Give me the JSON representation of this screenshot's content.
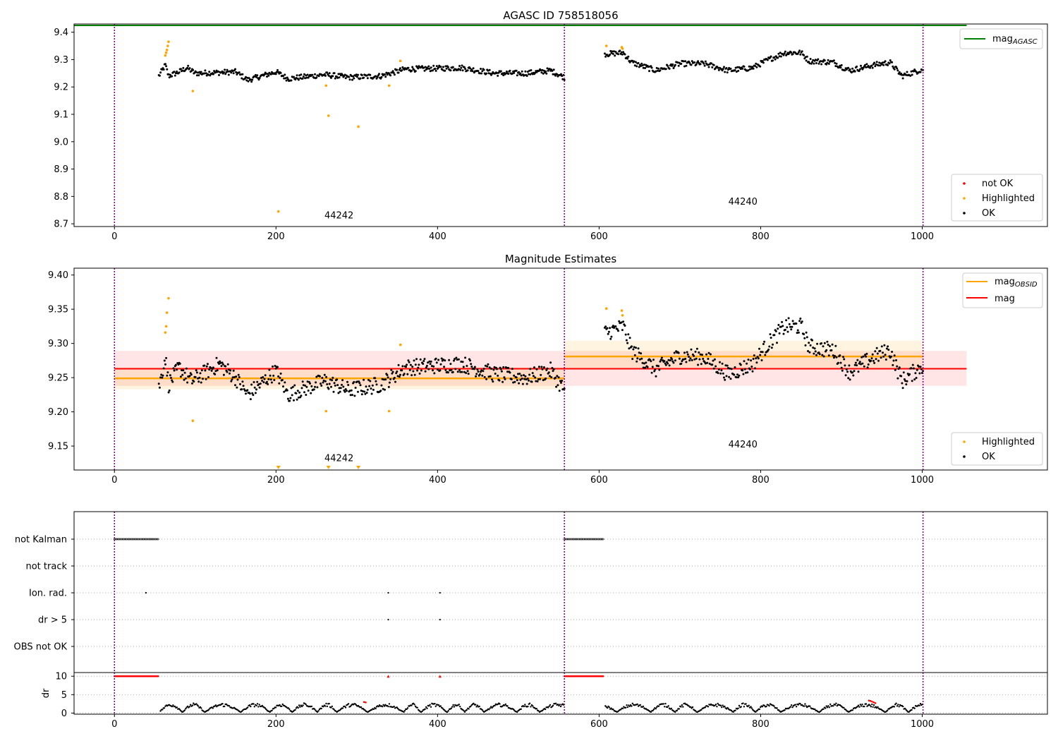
{
  "colors": {
    "ok": "#000000",
    "highlighted": "#ffa500",
    "not_ok": "#ff0000",
    "agasc": "#008000",
    "obs_mag": "#ffa500",
    "global_mag": "#ff0000",
    "boundary": "#800080"
  },
  "chart_data": [
    {
      "type": "scatter",
      "title": "AGASC ID 758518056",
      "xlim": [
        -50,
        1155
      ],
      "ylim": [
        8.69,
        9.43
      ],
      "xticks": [
        0,
        200,
        400,
        600,
        800,
        1000
      ],
      "yticks": [
        8.7,
        8.8,
        8.9,
        9.0,
        9.1,
        9.2,
        9.3,
        9.4
      ],
      "xtick_labels": [
        "0",
        "200",
        "400",
        "600",
        "800",
        "1000"
      ],
      "ytick_labels": [
        "8.7",
        "8.8",
        "8.9",
        "9.0",
        "9.1",
        "9.2",
        "9.3",
        "9.4"
      ],
      "grid": false,
      "boundaries": [
        0,
        557,
        1001
      ],
      "obsid_labels": [
        {
          "text": "44242",
          "x": 278,
          "y": 8.72
        },
        {
          "text": "44240",
          "x": 778,
          "y": 8.77
        }
      ],
      "agasc_mag": 9.425,
      "legend_lines": [
        {
          "label": "mag",
          "sub": "AGASC"
        }
      ],
      "legend_points": [
        "not OK",
        "Highlighted",
        "OK"
      ],
      "highlighted": [
        [
          63,
          9.315
        ],
        [
          64,
          9.325
        ],
        [
          65,
          9.335
        ],
        [
          66,
          9.35
        ],
        [
          67,
          9.365
        ],
        [
          97,
          9.185
        ],
        [
          203,
          8.745
        ],
        [
          262,
          9.205
        ],
        [
          265,
          9.095
        ],
        [
          302,
          9.055
        ],
        [
          340,
          9.205
        ],
        [
          354,
          9.295
        ],
        [
          609,
          9.35
        ],
        [
          628,
          9.345
        ],
        [
          629,
          9.34
        ]
      ],
      "ok_segments": [
        {
          "x0": 55,
          "x1": 557,
          "n": 500,
          "keys": [
            [
              55,
              9.24
            ],
            [
              63,
              9.28
            ],
            [
              67,
              9.24
            ],
            [
              80,
              9.255
            ],
            [
              90,
              9.27
            ],
            [
              100,
              9.25
            ],
            [
              150,
              9.255
            ],
            [
              165,
              9.225
            ],
            [
              200,
              9.255
            ],
            [
              215,
              9.23
            ],
            [
              260,
              9.245
            ],
            [
              290,
              9.235
            ],
            [
              330,
              9.24
            ],
            [
              360,
              9.265
            ],
            [
              430,
              9.27
            ],
            [
              470,
              9.25
            ],
            [
              510,
              9.25
            ],
            [
              540,
              9.26
            ],
            [
              557,
              9.235
            ]
          ],
          "noise": 0.01
        },
        {
          "x0": 607,
          "x1": 1001,
          "n": 380,
          "keys": [
            [
              607,
              9.32
            ],
            [
              630,
              9.325
            ],
            [
              640,
              9.29
            ],
            [
              670,
              9.26
            ],
            [
              700,
              9.285
            ],
            [
              730,
              9.285
            ],
            [
              760,
              9.26
            ],
            [
              790,
              9.27
            ],
            [
              810,
              9.3
            ],
            [
              830,
              9.325
            ],
            [
              850,
              9.325
            ],
            [
              860,
              9.295
            ],
            [
              890,
              9.29
            ],
            [
              910,
              9.26
            ],
            [
              940,
              9.28
            ],
            [
              960,
              9.29
            ],
            [
              975,
              9.24
            ],
            [
              1001,
              9.265
            ]
          ],
          "noise": 0.01
        }
      ]
    },
    {
      "type": "scatter",
      "title": "Magnitude Estimates",
      "xlim": [
        -50,
        1155
      ],
      "ylim": [
        9.115,
        9.41
      ],
      "xticks": [
        0,
        200,
        400,
        600,
        800,
        1000
      ],
      "yticks": [
        9.15,
        9.2,
        9.25,
        9.3,
        9.35,
        9.4
      ],
      "xtick_labels": [
        "0",
        "200",
        "400",
        "600",
        "800",
        "1000"
      ],
      "ytick_labels": [
        "9.15",
        "9.20",
        "9.25",
        "9.30",
        "9.35",
        "9.40"
      ],
      "grid": false,
      "boundaries": [
        0,
        557,
        1001
      ],
      "obsid_labels": [
        {
          "text": "44242",
          "x": 278,
          "y": 9.128
        },
        {
          "text": "44240",
          "x": 778,
          "y": 9.148
        }
      ],
      "global_mag": {
        "value": 9.263,
        "band": [
          9.238,
          9.289
        ],
        "x": [
          0,
          1055
        ]
      },
      "obs_mags": [
        {
          "x": [
            0,
            557
          ],
          "value": 9.249,
          "band": [
            9.233,
            9.265
          ]
        },
        {
          "x": [
            557,
            1001
          ],
          "value": 9.281,
          "band": [
            9.262,
            9.304
          ]
        }
      ],
      "legend_lines": [
        {
          "label": "mag",
          "sub": "OBSID"
        },
        {
          "label": "mag",
          "sub": ""
        }
      ],
      "legend_points": [
        "Highlighted",
        "OK"
      ],
      "highlighted": [
        [
          63,
          9.316
        ],
        [
          64,
          9.325
        ],
        [
          65,
          9.345
        ],
        [
          67,
          9.366
        ],
        [
          97,
          9.187
        ],
        [
          262,
          9.201
        ],
        [
          340,
          9.201
        ],
        [
          354,
          9.298
        ],
        [
          609,
          9.351
        ],
        [
          628,
          9.348
        ],
        [
          629,
          9.341
        ]
      ],
      "offscale_low": [
        203,
        265,
        302
      ],
      "ok_segments": [
        {
          "x0": 55,
          "x1": 557,
          "n": 500,
          "keys": [
            [
              55,
              9.235
            ],
            [
              63,
              9.28
            ],
            [
              67,
              9.24
            ],
            [
              80,
              9.265
            ],
            [
              95,
              9.245
            ],
            [
              130,
              9.27
            ],
            [
              150,
              9.25
            ],
            [
              165,
              9.225
            ],
            [
              200,
              9.26
            ],
            [
              215,
              9.225
            ],
            [
              260,
              9.245
            ],
            [
              290,
              9.232
            ],
            [
              330,
              9.24
            ],
            [
              360,
              9.265
            ],
            [
              430,
              9.27
            ],
            [
              470,
              9.255
            ],
            [
              510,
              9.25
            ],
            [
              540,
              9.26
            ],
            [
              557,
              9.232
            ]
          ],
          "noise": 0.012
        },
        {
          "x0": 607,
          "x1": 1001,
          "n": 380,
          "keys": [
            [
              607,
              9.315
            ],
            [
              630,
              9.325
            ],
            [
              640,
              9.29
            ],
            [
              670,
              9.262
            ],
            [
              700,
              9.282
            ],
            [
              730,
              9.28
            ],
            [
              760,
              9.255
            ],
            [
              790,
              9.27
            ],
            [
              810,
              9.3
            ],
            [
              830,
              9.325
            ],
            [
              850,
              9.325
            ],
            [
              860,
              9.295
            ],
            [
              890,
              9.29
            ],
            [
              910,
              9.258
            ],
            [
              940,
              9.28
            ],
            [
              960,
              9.29
            ],
            [
              975,
              9.245
            ],
            [
              1001,
              9.268
            ]
          ],
          "noise": 0.012
        }
      ]
    },
    {
      "type": "scatter",
      "title": "",
      "xlim": [
        -50,
        1155
      ],
      "xticks": [
        0,
        200,
        400,
        600,
        800,
        1000
      ],
      "xtick_labels": [
        "0",
        "200",
        "400",
        "600",
        "800",
        "1000"
      ],
      "boundaries": [
        0,
        557,
        1001
      ],
      "flag_rows": [
        "not Kalman",
        "not track",
        "Ion. rad.",
        "dr > 5",
        "OBS not OK"
      ],
      "flag_points": {
        "not Kalman": [
          [
            0,
            55
          ],
          [
            557,
            606
          ]
        ],
        "not track": [],
        "Ion. rad.": [
          39,
          339,
          403
        ],
        "dr > 5": [
          339,
          403
        ],
        "OBS not OK": []
      },
      "dr": {
        "ylabel": "dr",
        "ylim": [
          -0.3,
          11
        ],
        "yticks": [
          0,
          5,
          10
        ],
        "ytick_labels": [
          "0",
          "5",
          "10"
        ],
        "clip_value": 10,
        "clipped_ranges": [
          [
            0,
            55
          ],
          [
            339,
            339
          ],
          [
            403,
            403
          ],
          [
            557,
            606
          ]
        ],
        "segments": [
          [
            55,
            1001
          ]
        ],
        "red_points": [
          [
            934,
            3.4
          ],
          [
            936,
            3.3
          ],
          [
            938,
            3.1
          ],
          [
            940,
            2.9
          ],
          [
            942,
            2.7
          ],
          [
            309,
            3.0
          ],
          [
            311,
            2.9
          ]
        ]
      }
    }
  ]
}
